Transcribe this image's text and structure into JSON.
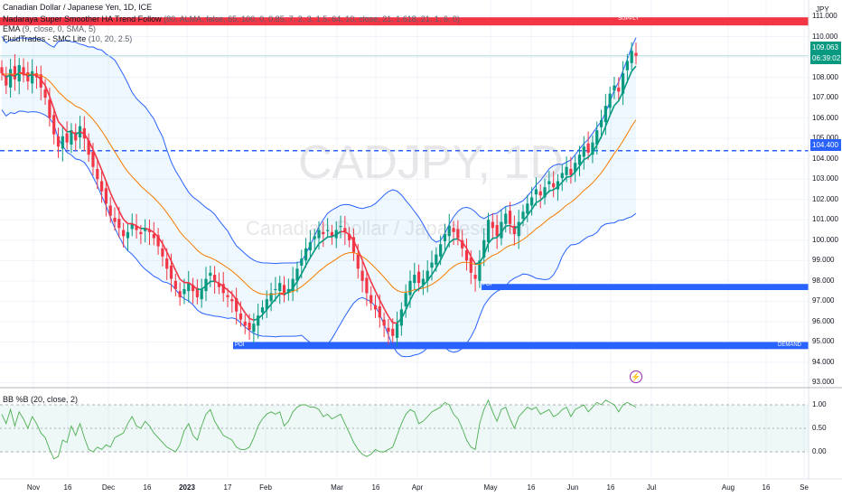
{
  "chart_data": {
    "type": "candlestick",
    "symbol": "CADJPY",
    "timeframe": "1D",
    "title": "Canadian Dollar / Japanese Yen, 1D, ICE",
    "watermark_symbol": "CADJPY, 1D",
    "watermark_name": "Canadian Dollar / Japanese Yen",
    "axis_unit": "JPY",
    "y_ticks": [
      "111.000",
      "110.000",
      "109.000",
      "108.000",
      "107.000",
      "106.000",
      "105.000",
      "104.000",
      "103.000",
      "102.000",
      "101.000",
      "100.000",
      "99.000",
      "98.000",
      "97.000",
      "96.000",
      "95.000",
      "94.000",
      "93.000"
    ],
    "ylim": [
      92.8,
      111.8
    ],
    "x_ticks": [
      "Nov",
      "16",
      "Dec",
      "16",
      "2023",
      "17",
      "Feb",
      "Mar",
      "16",
      "Apr",
      "May",
      "16",
      "Jun",
      "16",
      "Jul",
      "Aug",
      "16",
      "Se"
    ],
    "indicators": [
      {
        "name": "Nadaraya Super Smoother HA Trend Follow",
        "params": "(80, ALMA, false, 65, 100, 0, 0.85, 7, 2, 3, 1.5, 64, 10, close, 21, 1.618, 21, 1, 6, 0)"
      },
      {
        "name": "EMA",
        "params": "(9, close, 0, SMA, 5)"
      },
      {
        "name": "FluidTrades - SMC Lite",
        "params": "(10, 20, 2.5)"
      },
      {
        "name": "BB",
        "params": "(20, close, 2)"
      }
    ],
    "current_price": "109.063",
    "countdown": "06:39:02",
    "marked_level": "104.400",
    "supply_label": "SUPPLY",
    "demand_label": "DEMAND",
    "poi_label": "POI",
    "bbp": {
      "label": "BB %B (20, close, 2)",
      "y_ticks": [
        "1.00",
        "0.50",
        "0.00"
      ]
    },
    "series_closes": [
      108.2,
      107.6,
      108.4,
      107.9,
      108.6,
      108.1,
      107.8,
      108.3,
      108.0,
      107.5,
      107.0,
      106.0,
      105.2,
      104.6,
      105.1,
      104.8,
      105.4,
      104.9,
      105.6,
      105.0,
      104.2,
      103.6,
      103.0,
      102.4,
      101.8,
      101.2,
      100.9,
      100.6,
      100.2,
      100.4,
      100.8,
      100.5,
      100.3,
      100.6,
      100.4,
      100.1,
      99.7,
      99.2,
      98.6,
      98.1,
      97.6,
      97.2,
      97.6,
      97.9,
      97.5,
      97.2,
      97.6,
      98.1,
      98.4,
      98.0,
      97.7,
      97.4,
      97.2,
      97.0,
      96.5,
      96.1,
      95.8,
      95.6,
      95.9,
      96.3,
      96.7,
      97.1,
      97.4,
      97.6,
      97.9,
      97.3,
      97.6,
      98.1,
      98.6,
      99.1,
      99.6,
      99.9,
      100.2,
      100.5,
      100.3,
      100.5,
      100.2,
      100.5,
      100.7,
      100.4,
      100.0,
      99.4,
      98.6,
      98.0,
      97.4,
      96.9,
      96.6,
      96.2,
      95.8,
      95.5,
      95.3,
      95.9,
      96.6,
      97.4,
      98.0,
      98.3,
      97.9,
      98.1,
      98.5,
      98.9,
      99.3,
      99.8,
      100.3,
      100.7,
      100.4,
      100.1,
      99.6,
      99.0,
      98.4,
      98.1,
      99.0,
      100.0,
      101.0,
      100.6,
      100.2,
      100.9,
      101.3,
      100.8,
      100.3,
      100.9,
      101.4,
      101.8,
      102.1,
      102.5,
      102.2,
      102.6,
      102.9,
      102.6,
      102.9,
      103.3,
      103.6,
      103.2,
      103.8,
      104.2,
      104.6,
      104.3,
      104.8,
      105.4,
      105.9,
      106.6,
      107.2,
      107.6,
      107.3,
      108.2,
      108.8,
      109.3,
      109.06
    ],
    "bbp_values": [
      0.8,
      0.6,
      0.9,
      0.55,
      0.85,
      0.7,
      0.5,
      0.75,
      0.6,
      0.4,
      0.3,
      0.05,
      -0.15,
      -0.1,
      0.25,
      0.2,
      0.55,
      0.35,
      0.6,
      0.3,
      0.05,
      0.0,
      0.1,
      0.05,
      0.15,
      0.1,
      0.3,
      0.35,
      0.4,
      0.6,
      0.75,
      0.55,
      0.5,
      0.65,
      0.55,
      0.4,
      0.3,
      0.2,
      0.1,
      0.05,
      0.0,
      0.15,
      0.45,
      0.6,
      0.35,
      0.25,
      0.55,
      0.8,
      0.9,
      0.65,
      0.5,
      0.35,
      0.3,
      0.25,
      0.1,
      0.05,
      0.05,
      0.1,
      0.3,
      0.55,
      0.7,
      0.8,
      0.85,
      0.8,
      0.85,
      0.55,
      0.65,
      0.85,
      0.95,
      1.0,
      1.0,
      0.95,
      0.95,
      0.9,
      0.75,
      0.8,
      0.7,
      0.75,
      0.8,
      0.6,
      0.4,
      0.2,
      0.05,
      -0.05,
      -0.1,
      -0.05,
      0.05,
      0.0,
      0.0,
      0.05,
      0.1,
      0.35,
      0.6,
      0.8,
      0.9,
      0.85,
      0.6,
      0.65,
      0.75,
      0.85,
      0.9,
      0.95,
      1.05,
      1.0,
      0.8,
      0.7,
      0.5,
      0.25,
      0.1,
      0.05,
      0.6,
      0.9,
      1.1,
      0.85,
      0.65,
      0.9,
      0.95,
      0.7,
      0.5,
      0.75,
      0.85,
      0.95,
      0.9,
      0.95,
      0.8,
      0.85,
      0.9,
      0.75,
      0.8,
      0.9,
      0.95,
      0.75,
      0.9,
      0.95,
      1.0,
      0.85,
      0.95,
      1.05,
      1.0,
      1.1,
      1.05,
      1.0,
      0.85,
      1.0,
      1.05,
      1.0,
      0.95
    ],
    "legend_placement": "top-left",
    "grid": true
  },
  "colors": {
    "up": "#089981",
    "down": "#f23645",
    "band": "#2962ff",
    "ema": "#f57c00",
    "supply": "#f23645",
    "demand": "#2962ff",
    "level": "#2962ff",
    "bbp_line": "#4caf50"
  }
}
